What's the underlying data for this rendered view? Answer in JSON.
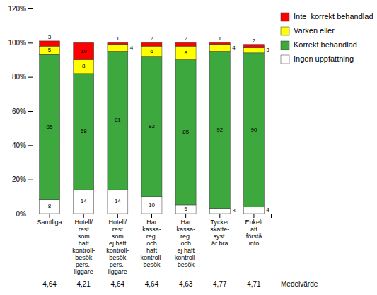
{
  "chart_data": {
    "type": "bar",
    "stacked": true,
    "data_labels": true,
    "grid": false,
    "legend": "right",
    "categories": [
      "Samtliga",
      "Hotell/\nrest\nsom\nhaft\nkontroll-\nbesök\npers.-\nliggare",
      "Hotell/\nrest\nsom\nej haft\nkontroll-\nbesök\npers.-\nliggare",
      "Har\nkassa-\nreg.\noch\nhaft\nkontroll-\nbesök",
      "Har\nkassa-\nreg.\noch\nej haft\nkontroll-\nbesök",
      "Tycker\nskatte-\nsyst.\när bra",
      "Enkelt\natt\nförstå\ninfo"
    ],
    "series": [
      {
        "name": "Ingen uppfattning",
        "color": "#ffffff",
        "values": [
          8,
          14,
          14,
          10,
          5,
          3,
          4
        ]
      },
      {
        "name": "Korrekt behandlad",
        "color": "#3da83d",
        "values": [
          85,
          68,
          81,
          82,
          85,
          92,
          90
        ]
      },
      {
        "name": "Varken eller",
        "color": "#ffff00",
        "values": [
          5,
          8,
          4,
          6,
          8,
          4,
          3
        ]
      },
      {
        "name": "Inte  korrekt behandlad",
        "color": "#ff0000",
        "values": [
          3,
          10,
          1,
          2,
          2,
          1,
          2
        ]
      }
    ],
    "ylim": [
      0,
      120
    ],
    "yticks": [
      {
        "value": 0,
        "label": "0%"
      },
      {
        "value": 20,
        "label": "20%"
      },
      {
        "value": 40,
        "label": "40%"
      },
      {
        "value": 60,
        "label": "60%"
      },
      {
        "value": 80,
        "label": "80%"
      },
      {
        "value": 100,
        "label": "100%"
      },
      {
        "value": 120,
        "label": "120%"
      }
    ],
    "mean_row": {
      "label": "Medelvärde",
      "values": [
        "4,64",
        "4,21",
        "4,64",
        "4,64",
        "4,63",
        "4,77",
        "4,71"
      ]
    }
  }
}
